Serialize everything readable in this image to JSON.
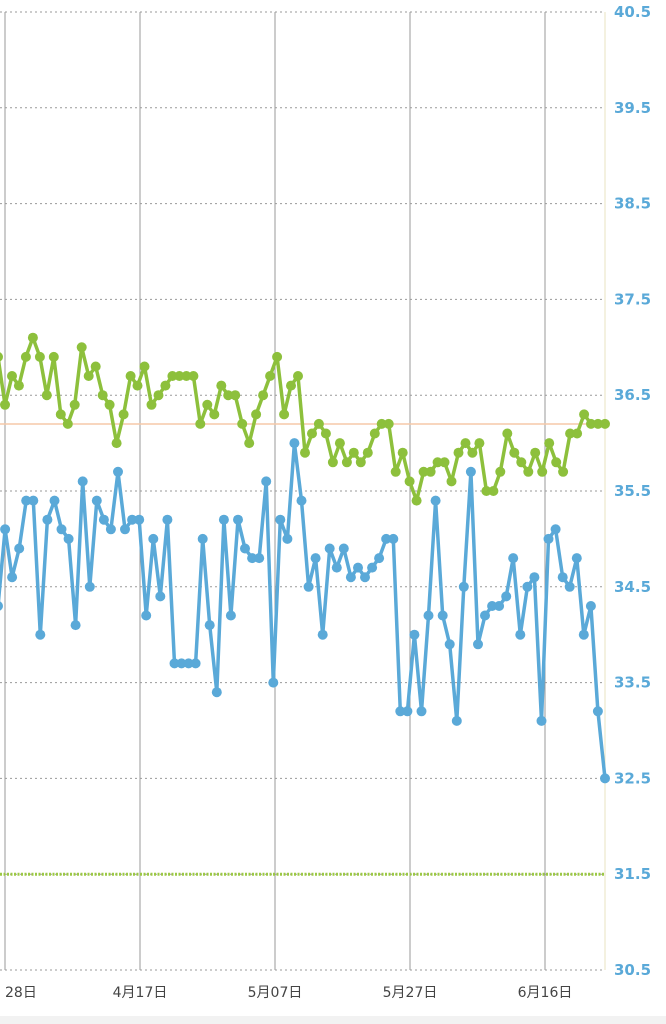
{
  "chart_data": {
    "type": "line",
    "ylim": [
      30.5,
      40.5
    ],
    "y_ticks": [
      "40.5",
      "39.5",
      "38.5",
      "37.5",
      "36.5",
      "35.5",
      "34.5",
      "33.5",
      "32.5",
      "31.5",
      "30.5"
    ],
    "x_ticks": [
      "28日",
      "4月17日",
      "5月07日",
      "5月27日",
      "6月16日"
    ],
    "grid": true,
    "reference_lines": [
      {
        "value": 36.2,
        "color": "#f5c9a8",
        "style": "solid"
      },
      {
        "value": 31.5,
        "color": "#9cc845",
        "style": "dotted"
      }
    ],
    "series": [
      {
        "color": "#8dc03c",
        "values": [
          36.9,
          36.4,
          36.7,
          36.6,
          36.9,
          37.1,
          36.9,
          36.5,
          36.9,
          36.3,
          36.2,
          36.4,
          37.0,
          36.7,
          36.8,
          36.5,
          36.4,
          36.0,
          36.3,
          36.7,
          36.6,
          36.8,
          36.4,
          36.5,
          36.6,
          36.7,
          36.7,
          36.7,
          36.7,
          36.2,
          36.4,
          36.3,
          36.6,
          36.5,
          36.5,
          36.2,
          36.0,
          36.3,
          36.5,
          36.7,
          36.9,
          36.3,
          36.6,
          36.7,
          35.9,
          36.1,
          36.2,
          36.1,
          35.8,
          36.0,
          35.8,
          35.9,
          35.8,
          35.9,
          36.1,
          36.2,
          36.2,
          35.7,
          35.9,
          35.6,
          35.4,
          35.7,
          35.7,
          35.8,
          35.8,
          35.6,
          35.9,
          36.0,
          35.9,
          36.0,
          35.5,
          35.5,
          35.7,
          36.1,
          35.9,
          35.8,
          35.7,
          35.9,
          35.7,
          36.0,
          35.8,
          35.7,
          36.1,
          36.1,
          36.3,
          36.2,
          36.2,
          36.2
        ]
      },
      {
        "color": "#5aa9d8",
        "values": [
          34.3,
          35.1,
          34.6,
          34.9,
          35.4,
          35.4,
          34.0,
          35.2,
          35.4,
          35.1,
          35.0,
          34.1,
          35.6,
          34.5,
          35.4,
          35.2,
          35.1,
          35.7,
          35.1,
          35.2,
          35.2,
          34.2,
          35.0,
          34.4,
          35.2,
          33.7,
          33.7,
          33.7,
          33.7,
          35.0,
          34.1,
          33.4,
          35.2,
          34.2,
          35.2,
          34.9,
          34.8,
          34.8,
          35.6,
          33.5,
          35.2,
          35.0,
          36.0,
          35.4,
          34.5,
          34.8,
          34.0,
          34.9,
          34.7,
          34.9,
          34.6,
          34.7,
          34.6,
          34.7,
          34.8,
          35.0,
          35.0,
          33.2,
          33.2,
          34.0,
          33.2,
          34.2,
          35.4,
          34.2,
          33.9,
          33.1,
          34.5,
          35.7,
          33.9,
          34.2,
          34.3,
          34.3,
          34.4,
          34.8,
          34.0,
          34.5,
          34.6,
          33.1,
          35.0,
          35.1,
          34.6,
          34.5,
          34.8,
          34.0,
          34.3,
          33.2,
          32.5
        ]
      }
    ]
  }
}
